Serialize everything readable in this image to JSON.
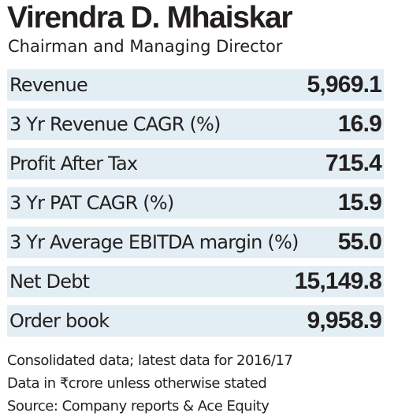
{
  "header": {
    "name": "Virendra D. Mhaiskar",
    "designation": "Chairman and Managing Director"
  },
  "metrics": [
    {
      "label": "Revenue",
      "value": "5,969.1"
    },
    {
      "label": "3 Yr Revenue CAGR (%)",
      "value": "16.9"
    },
    {
      "label": "Profit After  Tax",
      "value": "715.4"
    },
    {
      "label": "3 Yr PAT CAGR (%)",
      "value": "15.9"
    },
    {
      "label": "3 Yr Average EBITDA margin (%)",
      "value": "55.0"
    },
    {
      "label": "Net Debt",
      "value": "15,149.8"
    },
    {
      "label": "Order book",
      "value": "9,958.9"
    }
  ],
  "footnotes": [
    "Consolidated data; latest data for 2016/17",
    "Data in ₹crore unless otherwise stated",
    "Source: Company reports & Ace Equity"
  ],
  "colors": {
    "row_shade": "#e2eef3",
    "text": "#231f20"
  }
}
